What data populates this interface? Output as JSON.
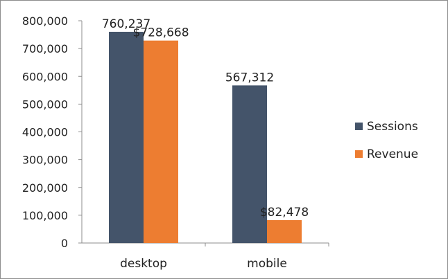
{
  "chart_data": {
    "type": "bar",
    "categories": [
      "desktop",
      "mobile"
    ],
    "series": [
      {
        "name": "Sessions",
        "values": [
          760237,
          567312
        ],
        "labels": [
          "760,237",
          "567,312"
        ],
        "color": "#44546a"
      },
      {
        "name": "Revenue",
        "values": [
          728668,
          82478
        ],
        "labels": [
          "$728,668",
          "$82,478"
        ],
        "color": "#ed7d31"
      }
    ],
    "yticks": [
      "0",
      "100,000",
      "200,000",
      "300,000",
      "400,000",
      "500,000",
      "600,000",
      "700,000",
      "800,000"
    ],
    "ylim": [
      0,
      800000
    ],
    "grid": false,
    "legend_position": "right",
    "title": "",
    "xlabel": "",
    "ylabel": ""
  }
}
